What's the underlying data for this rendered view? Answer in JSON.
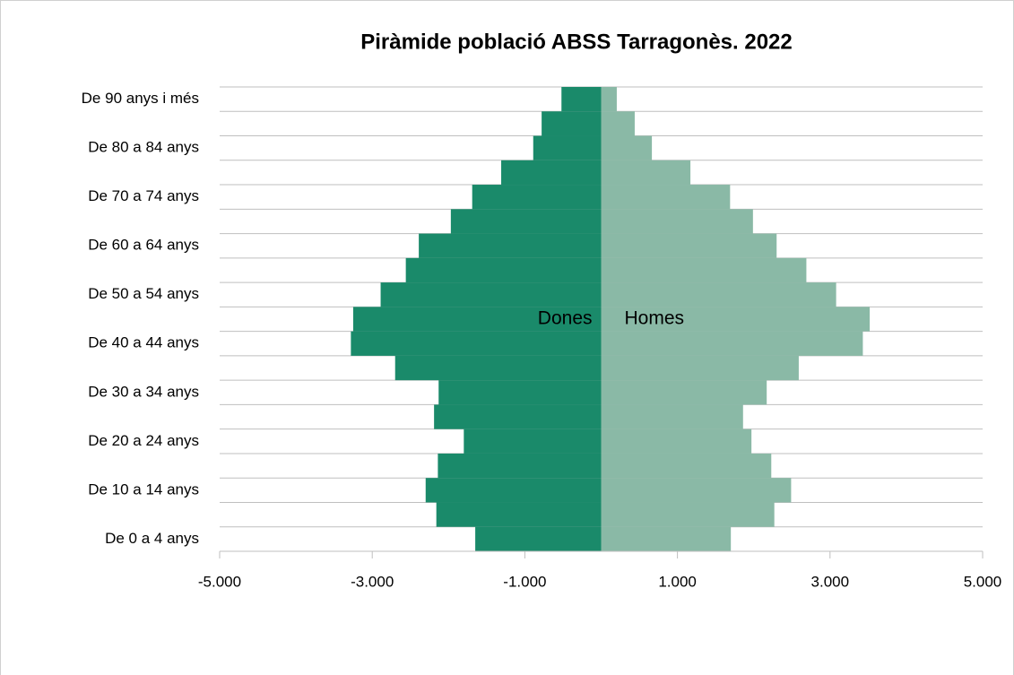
{
  "chart_data": {
    "type": "pyramid",
    "title": "Piràmide població ABSS Tarragonès. 2022",
    "categories": [
      "De 0 a 4 anys",
      null,
      "De 10 a 14 anys",
      null,
      "De 20 a 24 anys",
      null,
      "De 30 a 34 anys",
      null,
      "De 40 a 44 anys",
      null,
      "De 50 a 54 anys",
      null,
      "De 60 a 64 anys",
      null,
      "De 70 a 74 anys",
      null,
      "De 80 a 84 anys",
      null,
      "De 90 anys i més"
    ],
    "series": [
      {
        "name": "Dones",
        "color": "#1a8a6a",
        "values": [
          -1650,
          -2160,
          -2300,
          -2140,
          -1800,
          -2190,
          -2130,
          -2700,
          -3280,
          -3250,
          -2890,
          -2560,
          -2390,
          -1970,
          -1690,
          -1310,
          -890,
          -780,
          -520
        ]
      },
      {
        "name": "Homes",
        "color": "#8ab9a6",
        "values": [
          1700,
          2270,
          2490,
          2230,
          1970,
          1860,
          2170,
          2590,
          3430,
          3520,
          3080,
          2690,
          2300,
          1990,
          1690,
          1170,
          665,
          440,
          205
        ]
      }
    ],
    "xlim": [
      -5000,
      5000
    ],
    "xticks": [
      {
        "value": -5000,
        "label": "-5.000"
      },
      {
        "value": -3000,
        "label": "-3.000"
      },
      {
        "value": -1000,
        "label": "-1.000"
      },
      {
        "value": 1000,
        "label": "1.000"
      },
      {
        "value": 3000,
        "label": "3.000"
      },
      {
        "value": 5000,
        "label": "5.000"
      }
    ]
  }
}
